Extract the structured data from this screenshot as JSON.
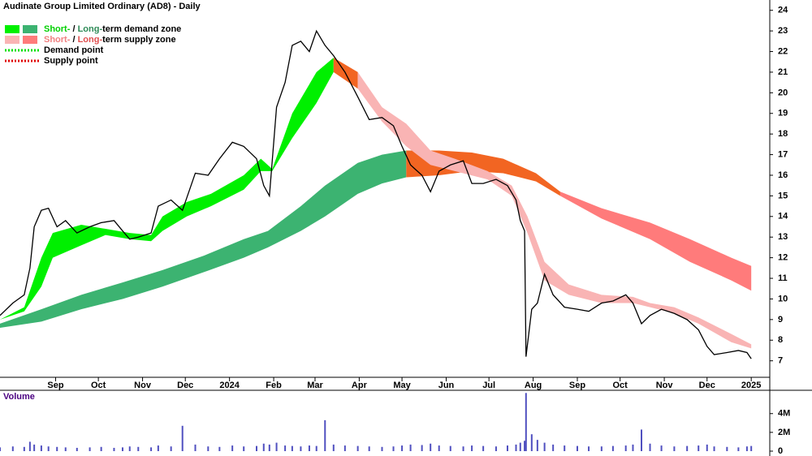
{
  "chart_data": [
    {
      "type": "line",
      "title": "Audinate Group Limited Ordinary (AD8) - Daily",
      "xlim": [
        4,
        544
      ],
      "ylim": [
        6.2,
        24.5
      ],
      "xticks": [
        {
          "value": 43,
          "label": "Sep"
        },
        {
          "value": 73,
          "label": "Oct"
        },
        {
          "value": 104,
          "label": "Nov"
        },
        {
          "value": 134,
          "label": "Dec"
        },
        {
          "value": 165,
          "label": "2024"
        },
        {
          "value": 196,
          "label": "Feb"
        },
        {
          "value": 225,
          "label": "Mar"
        },
        {
          "value": 256,
          "label": "Apr"
        },
        {
          "value": 286,
          "label": "May"
        },
        {
          "value": 317,
          "label": "Jun"
        },
        {
          "value": 347,
          "label": "Jul"
        },
        {
          "value": 378,
          "label": "Aug"
        },
        {
          "value": 409,
          "label": "Sep"
        },
        {
          "value": 439,
          "label": "Oct"
        },
        {
          "value": 470,
          "label": "Nov"
        },
        {
          "value": 500,
          "label": "Dec"
        },
        {
          "value": 531,
          "label": "2025"
        }
      ],
      "yticks": [
        7,
        8,
        9,
        10,
        11,
        12,
        13,
        14,
        15,
        16,
        17,
        18,
        19,
        20,
        21,
        22,
        23,
        24
      ],
      "legend": [
        {
          "swatches": [
            "#00f000",
            "#3cb371"
          ],
          "parts": [
            {
              "text": "Short-",
              "color": "#00d000"
            },
            {
              "text": " / ",
              "color": "#000000"
            },
            {
              "text": "Long-",
              "color": "#2e8b57"
            },
            {
              "text": "term demand zone",
              "color": "#000000"
            }
          ]
        },
        {
          "swatches": [
            "#f9b4b4",
            "#ff7b7b"
          ],
          "parts": [
            {
              "text": "Short-",
              "color": "#f08080"
            },
            {
              "text": " / ",
              "color": "#000000"
            },
            {
              "text": "Long-",
              "color": "#e05050"
            },
            {
              "text": "term supply zone",
              "color": "#000000"
            }
          ]
        },
        {
          "dotted": "#00e000",
          "parts": [
            {
              "text": "Demand point",
              "color": "#000000"
            }
          ]
        },
        {
          "dotted": "#e00000",
          "parts": [
            {
              "text": "Supply point",
              "color": "#000000"
            }
          ]
        }
      ],
      "zones": [
        {
          "color": "#3cb371",
          "x": [
            4,
            33,
            61,
            90,
            118,
            147,
            175,
            192,
            215,
            232,
            255,
            272,
            289
          ],
          "upper": [
            8.8,
            9.5,
            10.2,
            10.8,
            11.4,
            12.1,
            12.9,
            13.3,
            14.5,
            15.5,
            16.6,
            17.0,
            17.2
          ],
          "lower": [
            8.6,
            8.9,
            9.5,
            10.0,
            10.6,
            11.3,
            12.0,
            12.5,
            13.3,
            14.0,
            15.1,
            15.6,
            15.9
          ]
        },
        {
          "color": "#f26522",
          "x": [
            289,
            312,
            335,
            357,
            380,
            397
          ],
          "upper": [
            17.2,
            17.2,
            17.1,
            16.8,
            16.1,
            15.2
          ],
          "lower": [
            15.9,
            16.0,
            16.2,
            16.1,
            15.7,
            15.0
          ]
        },
        {
          "color": "#ff7b7b",
          "x": [
            397,
            426,
            460,
            488,
            517,
            531
          ],
          "upper": [
            15.2,
            14.4,
            13.7,
            12.9,
            12.0,
            11.6
          ],
          "lower": [
            15.0,
            13.9,
            12.9,
            11.8,
            10.9,
            10.4
          ]
        },
        {
          "color": "#00f000",
          "x": [
            4,
            21,
            33,
            41,
            61,
            78,
            95,
            110,
            118,
            135,
            152,
            175,
            187,
            195,
            209,
            226,
            238
          ],
          "upper": [
            9.0,
            9.6,
            12.0,
            13.2,
            13.6,
            13.4,
            13.2,
            13.1,
            14.0,
            14.7,
            15.1,
            16.0,
            16.8,
            16.3,
            19.0,
            21.0,
            21.7
          ],
          "lower": [
            9.0,
            9.4,
            10.6,
            12.0,
            12.6,
            13.1,
            12.9,
            12.8,
            13.3,
            14.0,
            14.5,
            15.3,
            16.2,
            16.2,
            17.8,
            19.5,
            21.0
          ]
        },
        {
          "color": "#f26522",
          "x": [
            238,
            255
          ],
          "upper": [
            21.7,
            21.0
          ],
          "lower": [
            21.0,
            20.2
          ]
        },
        {
          "color": "#f9b4b4",
          "x": [
            255,
            272,
            289,
            306,
            323,
            346,
            363,
            374,
            386,
            403,
            426,
            448,
            460,
            477,
            494,
            517,
            531
          ],
          "upper": [
            21.0,
            19.3,
            18.5,
            17.2,
            16.8,
            16.2,
            15.5,
            14.0,
            11.8,
            10.7,
            10.2,
            10.1,
            9.8,
            9.6,
            9.1,
            8.3,
            7.8
          ],
          "lower": [
            20.2,
            18.6,
            17.4,
            16.5,
            16.2,
            15.8,
            15.0,
            13.2,
            10.9,
            10.2,
            9.8,
            9.8,
            9.6,
            9.3,
            8.8,
            7.9,
            7.6
          ]
        }
      ],
      "series": [
        {
          "color": "#000000",
          "x": [
            4,
            13,
            21,
            25,
            28,
            33,
            38,
            44,
            50,
            58,
            67,
            75,
            84,
            90,
            95,
            101,
            110,
            115,
            124,
            132,
            141,
            150,
            158,
            167,
            175,
            184,
            189,
            193,
            198,
            204,
            209,
            215,
            221,
            226,
            232,
            238,
            246,
            255,
            263,
            272,
            280,
            286,
            292,
            300,
            306,
            312,
            320,
            329,
            335,
            343,
            352,
            360,
            366,
            369,
            372,
            373,
            377,
            381,
            386,
            392,
            400,
            409,
            417,
            426,
            434,
            443,
            448,
            454,
            460,
            468,
            477,
            486,
            494,
            500,
            505,
            514,
            522,
            528,
            531
          ],
          "values": [
            9.2,
            9.8,
            10.2,
            11.5,
            13.5,
            14.3,
            14.4,
            13.5,
            13.8,
            13.2,
            13.5,
            13.7,
            13.8,
            13.3,
            12.9,
            13.0,
            13.2,
            14.5,
            14.8,
            14.3,
            16.1,
            16.0,
            16.8,
            17.6,
            17.4,
            16.8,
            15.5,
            15.0,
            19.3,
            20.5,
            22.3,
            22.5,
            22.0,
            23.0,
            22.3,
            21.8,
            21.0,
            19.8,
            18.7,
            18.8,
            18.4,
            17.4,
            16.5,
            16.0,
            15.2,
            16.2,
            16.5,
            16.7,
            15.6,
            15.6,
            15.8,
            15.5,
            14.8,
            13.8,
            13.3,
            7.2,
            9.5,
            9.8,
            11.2,
            10.2,
            9.6,
            9.5,
            9.4,
            9.8,
            9.9,
            10.2,
            9.8,
            8.8,
            9.2,
            9.5,
            9.3,
            9.0,
            8.5,
            7.7,
            7.3,
            7.4,
            7.5,
            7.4,
            7.1
          ]
        }
      ]
    },
    {
      "type": "bar",
      "title": "Volume",
      "color": "#5050c0",
      "xlim": [
        4,
        544
      ],
      "ylim": [
        0,
        6400000
      ],
      "yticks": [
        0,
        {
          "value": 2000000,
          "label": "2M"
        },
        {
          "value": 4000000,
          "label": "4M"
        }
      ],
      "x": [
        4,
        13,
        21,
        25,
        28,
        33,
        38,
        44,
        50,
        58,
        67,
        75,
        84,
        90,
        95,
        101,
        110,
        115,
        124,
        132,
        141,
        150,
        158,
        167,
        175,
        184,
        189,
        193,
        198,
        204,
        209,
        215,
        221,
        226,
        232,
        238,
        246,
        255,
        263,
        272,
        280,
        286,
        292,
        300,
        306,
        312,
        320,
        329,
        335,
        343,
        352,
        360,
        366,
        369,
        372,
        373,
        377,
        381,
        386,
        392,
        400,
        409,
        417,
        426,
        434,
        443,
        448,
        454,
        460,
        468,
        477,
        486,
        494,
        500,
        505,
        514,
        522,
        528,
        531
      ],
      "values": [
        400000,
        500000,
        450000,
        1000000,
        700000,
        600000,
        500000,
        450000,
        400000,
        350000,
        400000,
        450000,
        350000,
        400000,
        500000,
        450000,
        400000,
        600000,
        500000,
        2700000,
        700000,
        500000,
        450000,
        600000,
        500000,
        550000,
        800000,
        700000,
        900000,
        600000,
        550000,
        500000,
        600000,
        550000,
        3300000,
        700000,
        600000,
        550000,
        500000,
        450000,
        500000,
        600000,
        700000,
        650000,
        800000,
        600000,
        550000,
        500000,
        600000,
        550000,
        500000,
        600000,
        700000,
        900000,
        1100000,
        6200000,
        1800000,
        1200000,
        900000,
        700000,
        600000,
        550000,
        500000,
        500000,
        550000,
        600000,
        700000,
        2300000,
        800000,
        600000,
        500000,
        550000,
        600000,
        700000,
        500000,
        450000,
        400000,
        500000,
        550000
      ]
    }
  ]
}
